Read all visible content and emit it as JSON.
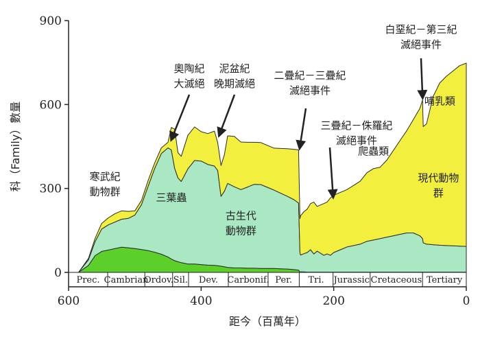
{
  "chart_data": {
    "type": "area",
    "title": "",
    "xlabel": "距今（百萬年）",
    "ylabel": "科（Family）數量",
    "xlim": [
      600,
      0
    ],
    "ylim": [
      0,
      900
    ],
    "x_ticks": [
      "600",
      "400",
      "200",
      "0"
    ],
    "y_ticks": [
      "0",
      "300",
      "600",
      "900"
    ],
    "grid": false,
    "legend": "none",
    "colors": {
      "cambrian_fauna": "#5ccf2a",
      "paleozoic_fauna": "#a9e8c2",
      "modern_fauna": "#f3ef3e",
      "axis": "#222222"
    },
    "x": [
      585,
      570,
      560,
      550,
      540,
      530,
      520,
      510,
      500,
      490,
      480,
      470,
      460,
      450,
      445,
      440,
      435,
      430,
      420,
      410,
      400,
      390,
      380,
      375,
      370,
      365,
      360,
      350,
      340,
      330,
      320,
      310,
      300,
      290,
      280,
      270,
      260,
      253,
      251,
      250,
      245,
      240,
      235,
      230,
      225,
      215,
      210,
      205,
      200,
      190,
      180,
      170,
      160,
      150,
      140,
      130,
      120,
      110,
      100,
      90,
      80,
      70,
      68,
      66,
      65,
      60,
      50,
      40,
      30,
      20,
      10,
      0
    ],
    "series": [
      {
        "name": "寒武紀動物群",
        "values": [
          0,
          25,
          60,
          75,
          80,
          85,
          90,
          88,
          85,
          82,
          78,
          72,
          65,
          55,
          48,
          42,
          38,
          35,
          30,
          30,
          28,
          26,
          25,
          24,
          22,
          20,
          18,
          16,
          16,
          15,
          15,
          14,
          14,
          14,
          13,
          12,
          10,
          8,
          2,
          2,
          2,
          1,
          1,
          1,
          1,
          1,
          1,
          1,
          1,
          1,
          1,
          1,
          1,
          1,
          1,
          1,
          1,
          1,
          1,
          1,
          1,
          1,
          1,
          1,
          1,
          1,
          1,
          1,
          1,
          1,
          1,
          1
        ]
      },
      {
        "name": "古生代動物群",
        "values": [
          0,
          20,
          50,
          80,
          90,
          95,
          100,
          105,
          120,
          160,
          230,
          300,
          360,
          390,
          390,
          330,
          300,
          290,
          340,
          370,
          370,
          360,
          355,
          340,
          250,
          270,
          300,
          290,
          280,
          290,
          300,
          300,
          290,
          280,
          270,
          260,
          250,
          240,
          70,
          60,
          65,
          70,
          80,
          65,
          75,
          60,
          65,
          60,
          70,
          80,
          90,
          95,
          100,
          110,
          115,
          120,
          125,
          130,
          135,
          140,
          140,
          130,
          125,
          120,
          105,
          100,
          98,
          96,
          95,
          94,
          93,
          92
        ]
      },
      {
        "name": "現代動物群",
        "values": [
          0,
          5,
          12,
          20,
          25,
          30,
          30,
          25,
          15,
          15,
          20,
          20,
          20,
          20,
          80,
          140,
          90,
          90,
          120,
          120,
          105,
          110,
          125,
          100,
          110,
          130,
          170,
          180,
          170,
          160,
          150,
          150,
          150,
          150,
          160,
          170,
          180,
          190,
          120,
          140,
          150,
          155,
          165,
          185,
          160,
          185,
          185,
          205,
          205,
          205,
          205,
          215,
          225,
          245,
          255,
          255,
          275,
          305,
          335,
          365,
          405,
          455,
          475,
          495,
          415,
          430,
          530,
          580,
          605,
          625,
          645,
          655
        ]
      }
    ],
    "periods": [
      "Prec.",
      "Cambrian",
      "Ordov.",
      "Sil.",
      "Dev.",
      "Carbonif.",
      "Per.",
      "Tri.",
      "Jurassic",
      "Cretaceous",
      "Tertiary"
    ],
    "period_bounds": [
      600,
      541,
      485,
      443,
      419,
      359,
      299,
      252,
      201,
      145,
      66,
      0
    ],
    "region_labels": [
      {
        "text": "寒武紀\n動物群",
        "x": 545,
        "y": 330
      },
      {
        "text": "三葉蟲",
        "x": 445,
        "y": 255
      },
      {
        "text": "古生代\n動物群",
        "x": 340,
        "y": 190
      },
      {
        "text": "爬蟲類",
        "x": 140,
        "y": 420
      },
      {
        "text": "哺乳類",
        "x": 40,
        "y": 600
      },
      {
        "text": "現代動物\n群",
        "x": 42,
        "y": 325
      }
    ],
    "annotations": [
      {
        "text": "奧陶紀\n大滅絕",
        "x": 444,
        "y": 470
      },
      {
        "text": "泥盆紀\n晚期滅絕",
        "x": 372,
        "y": 485
      },
      {
        "text": "二疊紀－三疊紀\n滅絕事件",
        "x": 251,
        "y": 440
      },
      {
        "text": "三疊紀－侏羅紀\n滅絕事件",
        "x": 201,
        "y": 265
      },
      {
        "text": "白堊紀－第三紀\n滅絕事件",
        "x": 66,
        "y": 620
      }
    ]
  }
}
